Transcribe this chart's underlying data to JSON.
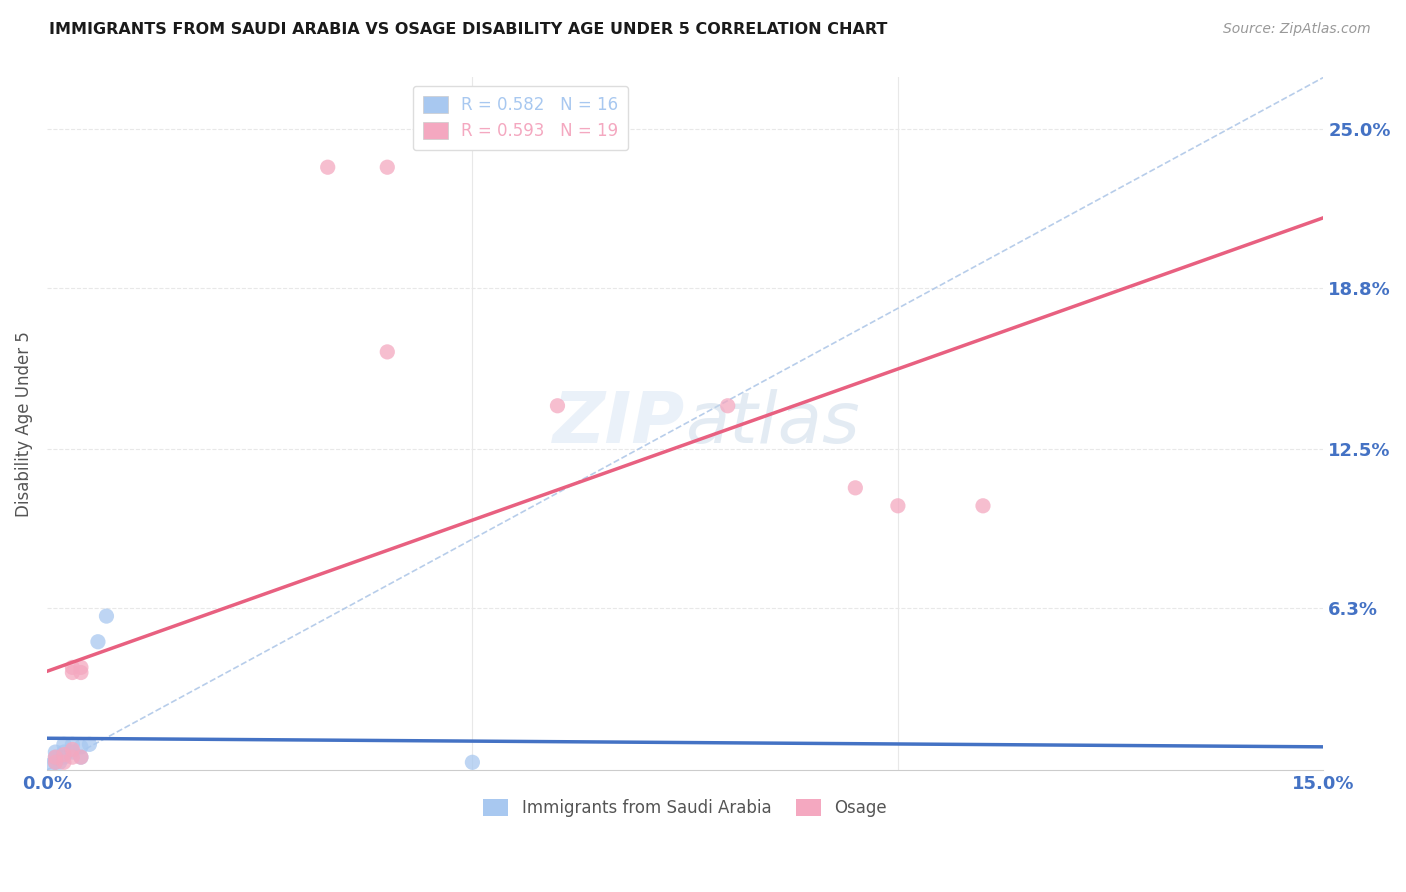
{
  "title": "IMMIGRANTS FROM SAUDI ARABIA VS OSAGE DISABILITY AGE UNDER 5 CORRELATION CHART",
  "source": "Source: ZipAtlas.com",
  "ylabel_label": "Disability Age Under 5",
  "ylabel_ticks_labels": [
    "25.0%",
    "18.8%",
    "12.5%",
    "6.3%"
  ],
  "ylabel_ticks_values": [
    0.25,
    0.188,
    0.125,
    0.063
  ],
  "xmin": 0.0,
  "xmax": 0.15,
  "ymin": 0.0,
  "ymax": 0.27,
  "legend_entries": [
    {
      "label_r": "R = 0.582",
      "label_n": "N = 16",
      "color": "#a8c8f0"
    },
    {
      "label_r": "R = 0.593",
      "label_n": "N = 19",
      "color": "#f4a8c0"
    }
  ],
  "legend_labels_bottom": [
    "Immigrants from Saudi Arabia",
    "Osage"
  ],
  "saudi_points": [
    [
      0.0005,
      0.002
    ],
    [
      0.001,
      0.003
    ],
    [
      0.001,
      0.005
    ],
    [
      0.001,
      0.007
    ],
    [
      0.0015,
      0.003
    ],
    [
      0.002,
      0.005
    ],
    [
      0.002,
      0.007
    ],
    [
      0.002,
      0.01
    ],
    [
      0.003,
      0.007
    ],
    [
      0.003,
      0.01
    ],
    [
      0.004,
      0.005
    ],
    [
      0.004,
      0.009
    ],
    [
      0.005,
      0.01
    ],
    [
      0.006,
      0.05
    ],
    [
      0.007,
      0.06
    ],
    [
      0.05,
      0.003
    ]
  ],
  "osage_points": [
    [
      0.001,
      0.003
    ],
    [
      0.001,
      0.005
    ],
    [
      0.002,
      0.003
    ],
    [
      0.002,
      0.006
    ],
    [
      0.003,
      0.005
    ],
    [
      0.003,
      0.008
    ],
    [
      0.003,
      0.04
    ],
    [
      0.003,
      0.038
    ],
    [
      0.004,
      0.005
    ],
    [
      0.004,
      0.04
    ],
    [
      0.004,
      0.038
    ],
    [
      0.033,
      0.235
    ],
    [
      0.04,
      0.235
    ],
    [
      0.04,
      0.163
    ],
    [
      0.06,
      0.142
    ],
    [
      0.08,
      0.142
    ],
    [
      0.095,
      0.11
    ],
    [
      0.1,
      0.103
    ],
    [
      0.11,
      0.103
    ]
  ],
  "saudi_color": "#a8c8f0",
  "osage_color": "#f4a8c0",
  "saudi_line_color": "#4472c4",
  "osage_line_color": "#e86080",
  "diagonal_color": "#b0c8e8",
  "bg_color": "#ffffff",
  "grid_color": "#e8e8e8",
  "title_color": "#1a1a1a",
  "axis_label_color": "#4472c4",
  "marker_size": 120,
  "marker_alpha": 0.75
}
